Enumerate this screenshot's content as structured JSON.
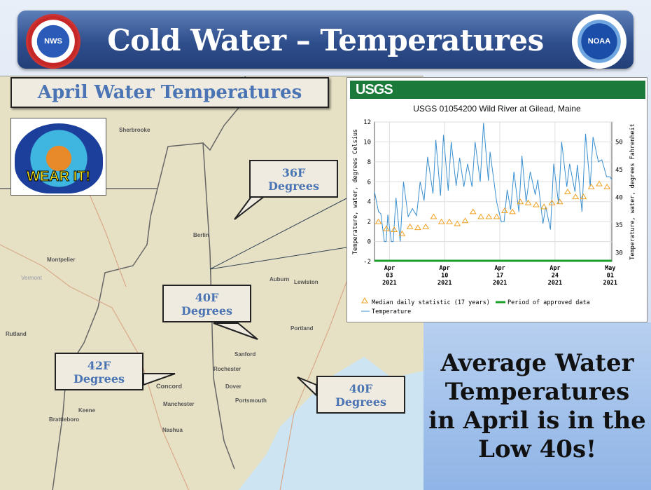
{
  "header": {
    "title": "Cold Water – Temperatures",
    "left_logo": "NWS",
    "right_logo": "NOAA"
  },
  "map": {
    "heading": "April Water Temperatures",
    "wear_it": "WEAR IT!",
    "cities": [
      "Sherbrooke",
      "Berlin",
      "Montpelier",
      "Vermont",
      "Auburn",
      "Lewiston",
      "Rutland",
      "Sanford",
      "Rochester",
      "Concord",
      "Dover",
      "Portsmouth",
      "Manchester",
      "Keene",
      "Brattleboro",
      "Nashua",
      "Portland"
    ],
    "callouts": [
      {
        "temp": "36F",
        "unit": "Degrees"
      },
      {
        "temp": "40F",
        "unit": "Degrees"
      },
      {
        "temp": "42F",
        "unit": "Degrees"
      },
      {
        "temp": "40F",
        "unit": "Degrees"
      }
    ]
  },
  "info": {
    "lines": [
      "Average Water",
      "Temperatures",
      "in April is in the",
      "Low 40s!"
    ]
  },
  "chart_data": {
    "type": "line",
    "brand": "USGS",
    "title": "USGS 01054200 Wild River at Gilead, Maine",
    "ylabel": "Temperature, water, degrees Celsius",
    "ylabel_right": "Temperature, water, degrees Fahrenheit",
    "ylim": [
      -2,
      12
    ],
    "yticks": [
      -2,
      0,
      2,
      4,
      6,
      8,
      10,
      12
    ],
    "yticks_right": [
      30,
      35,
      40,
      45,
      50
    ],
    "xlim_day_of_april": [
      1.1,
      31.2
    ],
    "xticks": [
      {
        "day": 3,
        "label": [
          "Apr",
          "03",
          "2021"
        ]
      },
      {
        "day": 10,
        "label": [
          "Apr",
          "10",
          "2021"
        ]
      },
      {
        "day": 17,
        "label": [
          "Apr",
          "17",
          "2021"
        ]
      },
      {
        "day": 24,
        "label": [
          "Apr",
          "24",
          "2021"
        ]
      },
      {
        "day": 31,
        "label": [
          "May",
          "01",
          "2021"
        ]
      }
    ],
    "grid": true,
    "legend": {
      "median": "Median daily statistic (17 years)",
      "approved": "Period of approved data",
      "temperature": "Temperature",
      "placement": "bottom"
    },
    "colors": {
      "temperature": "#3a8fd0",
      "median": "#f0a020",
      "approved": "#1aa02a"
    },
    "series": [
      {
        "name": "Temperature",
        "day": [
          1.1,
          1.61,
          1.9,
          2.35,
          2.58,
          2.79,
          3.24,
          3.47,
          3.83,
          4.36,
          4.78,
          5.37,
          5.91,
          6.44,
          6.89,
          7.39,
          7.84,
          8.52,
          8.88,
          9.47,
          9.85,
          10.45,
          10.83,
          11.46,
          11.9,
          12.44,
          12.91,
          13.47,
          13.86,
          14.51,
          14.93,
          15.55,
          15.76,
          16.59,
          17.18,
          17.54,
          17.93,
          18.37,
          18.79,
          19.41,
          19.8,
          20.33,
          20.86,
          21.49,
          21.81,
          22.47,
          22.82,
          23.42,
          23.83,
          24.45,
          24.84,
          25.49,
          25.85,
          26.53,
          26.83,
          27.42,
          27.87,
          28.46,
          28.82,
          29.5,
          29.94,
          30.54,
          30.98,
          31.22
        ],
        "values": [
          5,
          3,
          2.8,
          0,
          0,
          2.7,
          0,
          0,
          4.4,
          0,
          6,
          2.5,
          3.3,
          2.6,
          6.0,
          4.1,
          8.5,
          4.8,
          10.2,
          4.6,
          10.7,
          5.1,
          10,
          5.6,
          8.4,
          5.5,
          7.8,
          5.5,
          10,
          6.0,
          11.9,
          6.1,
          9.0,
          4,
          2,
          2,
          5.2,
          3.2,
          7.0,
          3,
          8.6,
          4,
          7,
          4.7,
          6.2,
          1.8,
          3.5,
          1.2,
          7.8,
          3.8,
          10,
          5.5,
          7.8,
          5.0,
          7.7,
          3.0,
          10.8,
          5.5,
          10.5,
          8.0,
          8.2,
          6.5,
          6.5,
          6.2
        ]
      },
      {
        "name": "Median daily statistic (17 years)",
        "day": [
          1.6,
          2.6,
          3.6,
          4.6,
          5.6,
          6.6,
          7.6,
          8.6,
          9.6,
          10.6,
          11.6,
          12.6,
          13.6,
          14.6,
          15.6,
          16.6,
          17.6,
          18.6,
          19.6,
          20.6,
          21.6,
          22.6,
          23.6,
          24.6,
          25.6,
          26.6,
          27.6,
          28.6,
          29.6,
          30.6
        ],
        "values": [
          2.0,
          1.3,
          1.2,
          0.8,
          1.5,
          1.4,
          1.5,
          2.5,
          2.0,
          2.0,
          1.8,
          2.1,
          3.0,
          2.5,
          2.5,
          2.5,
          3.1,
          3.0,
          4.0,
          3.9,
          3.7,
          3.5,
          3.9,
          4.0,
          5.0,
          4.5,
          4.5,
          5.5,
          5.8,
          5.5
        ]
      }
    ]
  }
}
